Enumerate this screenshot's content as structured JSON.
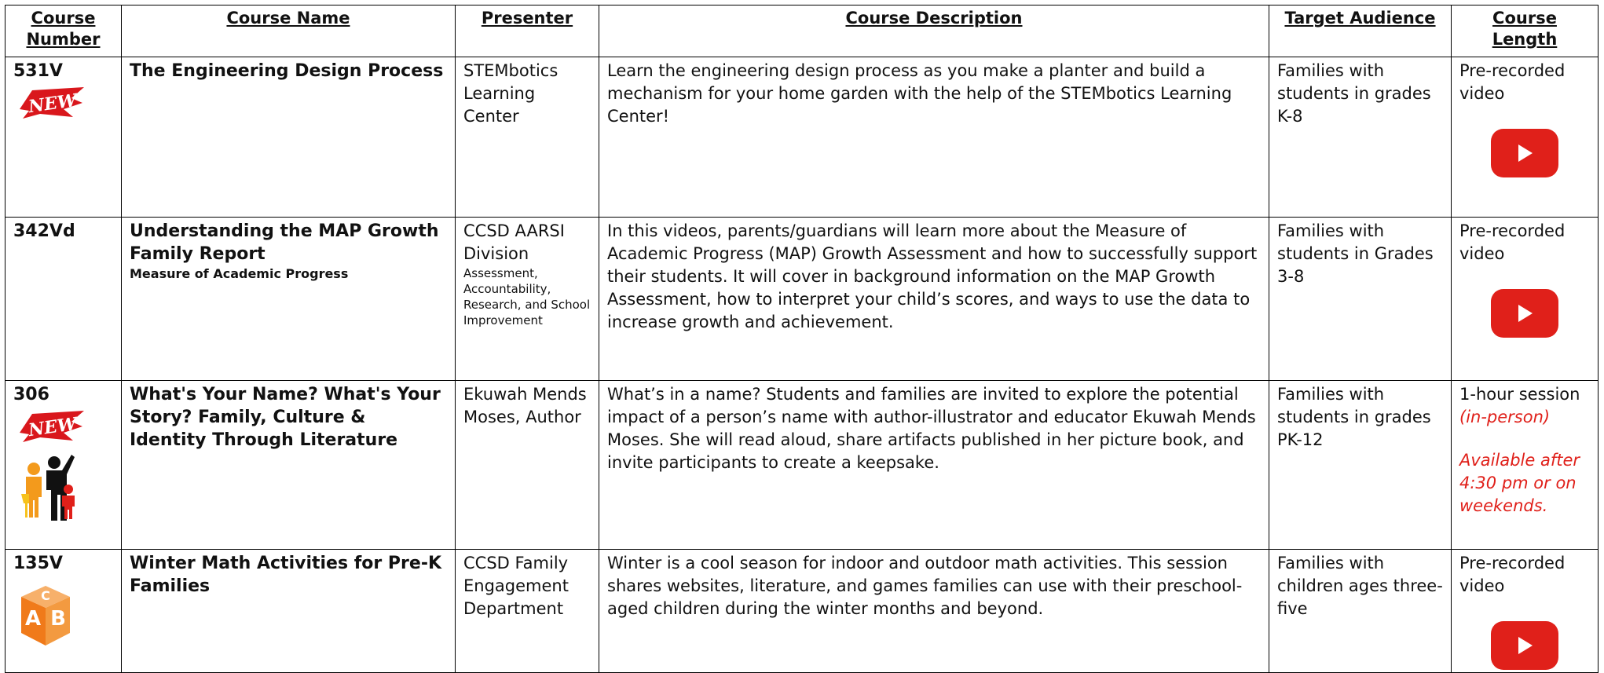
{
  "table": {
    "columns": [
      "Course Number",
      "Course Name",
      "Presenter",
      "Course Description",
      "Target Audience",
      "Course Length"
    ],
    "rows": [
      {
        "number": "531V",
        "badge": "NEW",
        "name": "The Engineering Design Process",
        "presenter": "STEMbotics Learning Center",
        "description": "Learn the engineering design process as you make a planter and build a mechanism for your home garden with the help of the STEMbotics Learning Center!",
        "audience": "Families with students in grades K-8",
        "length": "Pre-recorded video"
      },
      {
        "number": "342Vd",
        "name": "Understanding the MAP Growth Family Report",
        "name_note": "Measure of Academic Progress",
        "presenter": "CCSD AARSI Division",
        "presenter_note": "Assessment, Accountability, Research, and School Improvement",
        "description": "In this videos, parents/guardians will learn more about the Measure of Academic Progress (MAP) Growth Assessment and how to successfully support their students. It will cover in background information on the MAP Growth Assessment, how to interpret your child’s scores, and ways to use the data to increase growth and achievement.",
        "audience": "Families with students in Grades 3-8",
        "length": "Pre-recorded video"
      },
      {
        "number": "306",
        "badge": "NEW",
        "name": "What's Your Name? What's Your Story? Family, Culture & Identity Through Literature",
        "presenter": "Ekuwah Mends Moses, Author",
        "description": "What’s in a name? Students and families are invited to explore the potential impact of a person’s name with author-illustrator and educator Ekuwah Mends Moses. She will read aloud, share artifacts published in her picture book, and invite participants to create a keepsake.",
        "audience": "Families with students in grades PK-12",
        "length": "1-hour session",
        "length_notes": [
          "(in-person)",
          "Available after 4:30 pm or on weekends."
        ]
      },
      {
        "number": "135V",
        "block_letters": [
          "C",
          "A",
          "B"
        ],
        "name": "Winter Math Activities for Pre-K Families",
        "presenter": "CCSD Family Engagement Department",
        "description": "Winter is a cool season for indoor and outdoor math activities. This session shares websites, literature, and games families can use with their preschool-aged children during the winter months and beyond.",
        "audience": "Families with children ages three-five",
        "length": "Pre-recorded video"
      }
    ]
  }
}
